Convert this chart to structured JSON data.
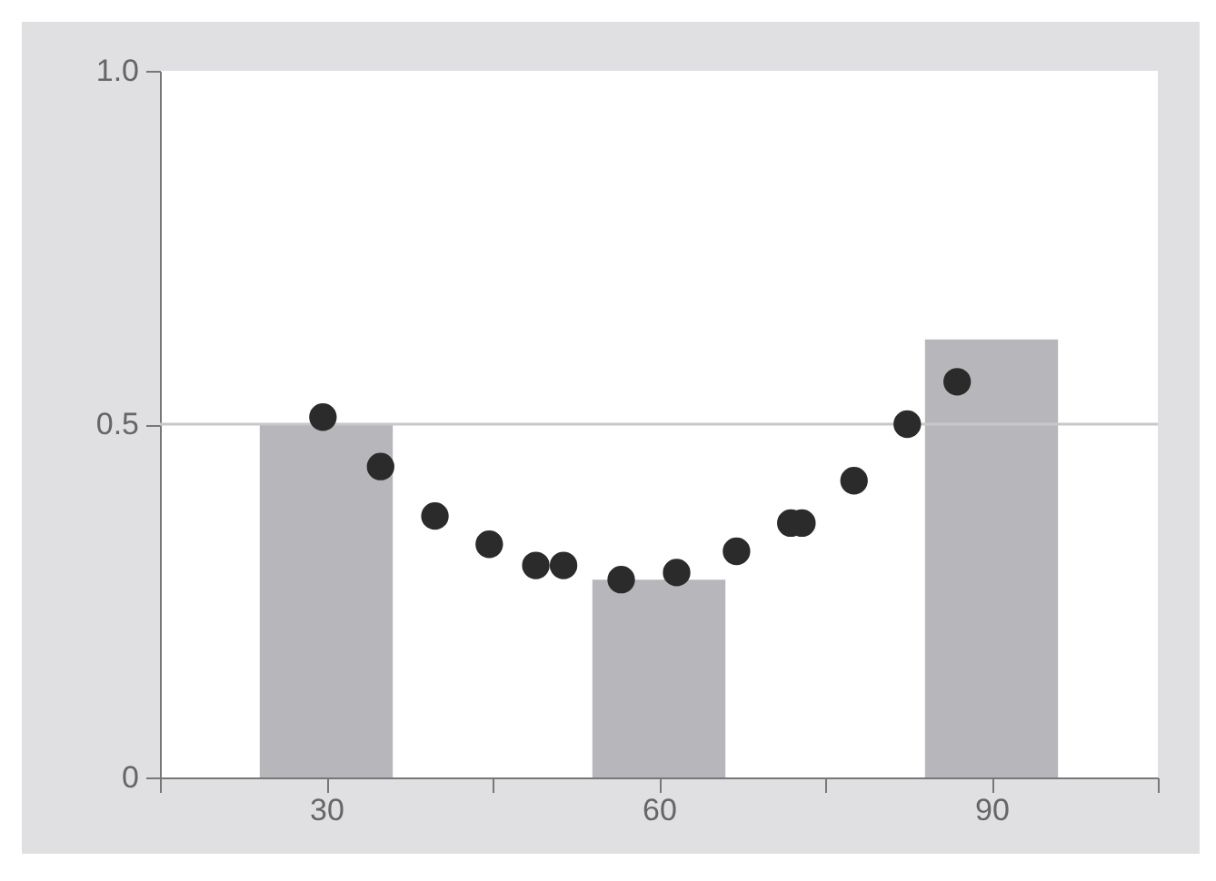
{
  "chart_data": {
    "type": "bar",
    "xlim": [
      15,
      105
    ],
    "xticks": [
      {
        "value": 15,
        "label": null
      },
      30,
      {
        "value": 45,
        "label": null
      },
      60,
      {
        "value": 75,
        "label": null
      },
      90,
      {
        "value": 105,
        "label": null
      }
    ],
    "ylim": [
      0,
      1
    ],
    "yticks": [
      0,
      0.5,
      {
        "value": 1,
        "label": "1.0"
      }
    ],
    "grid": false,
    "marker": "circle",
    "series": [
      {
        "color": "#b7b7bb",
        "x": [
          30,
          60,
          90
        ],
        "values": [
          0.5,
          0.28,
          0.62
        ]
      },
      {
        "type": "scatter",
        "color": "#2b2b2b",
        "x": [
          29.7,
          34.9,
          39.8,
          44.7,
          48.9,
          51.4,
          56.6,
          61.6,
          67.0,
          71.9,
          72.9,
          77.6,
          82.4,
          86.9
        ],
        "values": [
          0.51,
          0.44,
          0.37,
          0.33,
          0.3,
          0.3,
          0.28,
          0.29,
          0.32,
          0.36,
          0.36,
          0.42,
          0.5,
          0.56
        ]
      }
    ],
    "ref_lines": [
      {
        "axis": "y",
        "value": 0.5,
        "color": "#c8c8c8"
      }
    ]
  }
}
